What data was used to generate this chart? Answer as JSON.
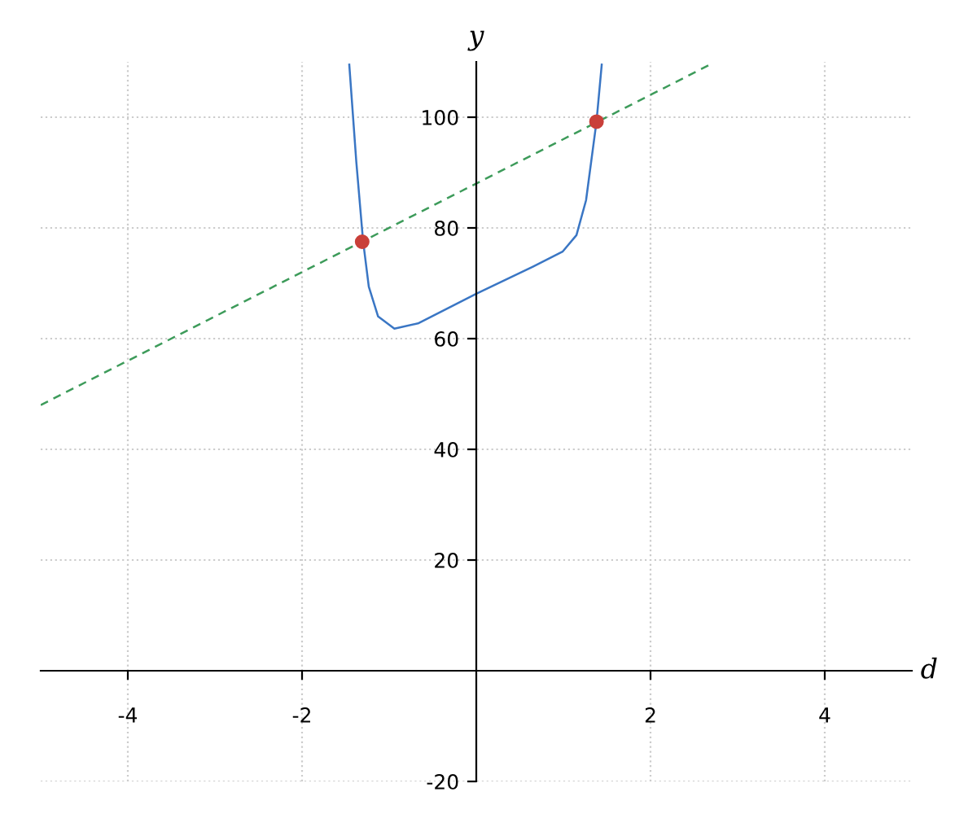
{
  "chart_data": {
    "type": "line",
    "xlabel": "d",
    "ylabel": "y",
    "xlim": [
      -5,
      5
    ],
    "ylim": [
      -20,
      110
    ],
    "xticks": [
      -4,
      -2,
      2,
      4
    ],
    "yticks": [
      -20,
      20,
      40,
      60,
      80,
      100
    ],
    "grid": true,
    "series": [
      {
        "color": "#3a76c4",
        "line_style": "solid",
        "x": [
          -1.458,
          -1.377,
          -1.3,
          -1.234,
          -1.127,
          -0.94,
          -0.66,
          0.0,
          0.65,
          0.99,
          1.15,
          1.26,
          1.38,
          1.44
        ],
        "values": [
          109.5,
          91.9,
          77.7,
          69.4,
          64.0,
          61.8,
          62.8,
          68.1,
          73.0,
          75.7,
          78.7,
          85.0,
          99.2,
          109.5
        ]
      },
      {
        "color": "#3d9b5a",
        "line_style": "dashed",
        "x": [
          -5,
          2.67
        ],
        "values": [
          48,
          109.4
        ]
      },
      {
        "type": "scatter",
        "color": "#c9403a",
        "marker": "circle",
        "x": [
          -1.31,
          1.38
        ],
        "values": [
          77.5,
          99.2
        ]
      }
    ]
  }
}
